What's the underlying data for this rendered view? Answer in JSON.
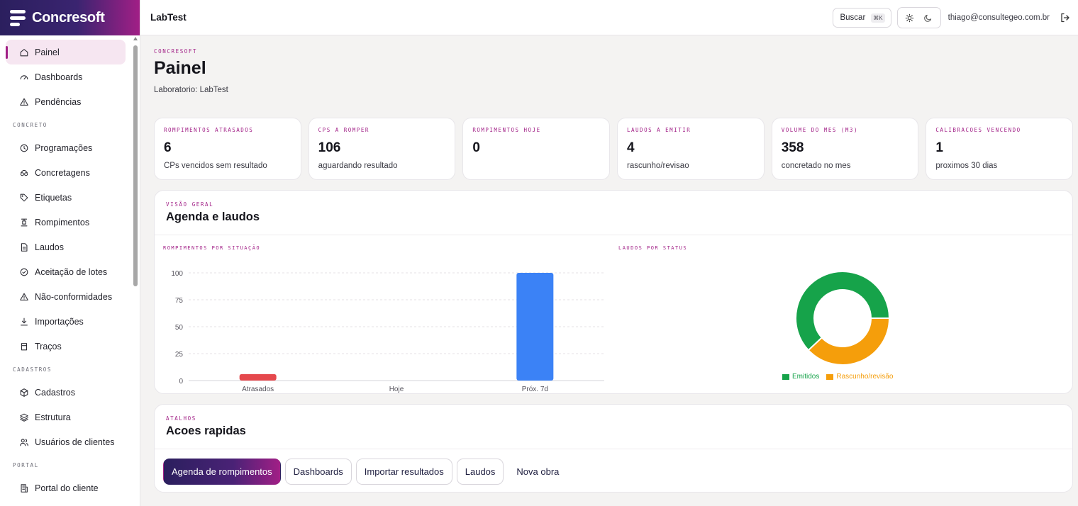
{
  "brand": {
    "name": "Concresoft"
  },
  "sidebar": {
    "items": [
      {
        "label": "Painel",
        "icon": "home-icon",
        "active": true
      },
      {
        "label": "Dashboards",
        "icon": "gauge-icon"
      },
      {
        "label": "Pendências",
        "icon": "warning-icon"
      },
      {
        "section": "CONCRETO"
      },
      {
        "label": "Programações",
        "icon": "clock-icon"
      },
      {
        "label": "Concretagens",
        "icon": "truck-icon"
      },
      {
        "label": "Etiquetas",
        "icon": "tag-icon"
      },
      {
        "label": "Rompimentos",
        "icon": "press-icon"
      },
      {
        "label": "Laudos",
        "icon": "document-icon"
      },
      {
        "label": "Aceitação de lotes",
        "icon": "check-circle-icon"
      },
      {
        "label": "Não-conformidades",
        "icon": "warning-icon"
      },
      {
        "label": "Importações",
        "icon": "download-icon"
      },
      {
        "label": "Traços",
        "icon": "cylinder-icon"
      },
      {
        "section": "CADASTROS"
      },
      {
        "label": "Cadastros",
        "icon": "box-icon"
      },
      {
        "label": "Estrutura",
        "icon": "layers-icon"
      },
      {
        "label": "Usuários de clientes",
        "icon": "users-icon"
      },
      {
        "section": "PORTAL"
      },
      {
        "label": "Portal do cliente",
        "icon": "building-icon"
      }
    ]
  },
  "topbar": {
    "title": "LabTest",
    "search_label": "Buscar",
    "search_shortcut": "⌘K",
    "user_email": "thiago@consultegeo.com.br"
  },
  "page": {
    "eyebrow": "CONCRESOFT",
    "title": "Painel",
    "subtitle": "Laboratorio: LabTest"
  },
  "stats": [
    {
      "label": "ROMPIMENTOS ATRASADOS",
      "value": "6",
      "note": "CPs vencidos sem resultado"
    },
    {
      "label": "CPS A ROMPER",
      "value": "106",
      "note": "aguardando resultado"
    },
    {
      "label": "ROMPIMENTOS HOJE",
      "value": "0",
      "note": ""
    },
    {
      "label": "LAUDOS A EMITIR",
      "value": "4",
      "note": "rascunho/revisao"
    },
    {
      "label": "VOLUME DO MES (M3)",
      "value": "358",
      "note": "concretado no mes"
    },
    {
      "label": "CALIBRACOES VENCENDO",
      "value": "1",
      "note": "proximos 30 dias"
    }
  ],
  "overview": {
    "eyebrow": "VISÃO GERAL",
    "title": "Agenda e laudos",
    "bar_label": "ROMPIMENTOS POR SITUAÇÃO",
    "donut_label": "LAUDOS POR STATUS"
  },
  "chart_data": [
    {
      "type": "bar",
      "title": "ROMPIMENTOS POR SITUAÇÃO",
      "categories": [
        "Atrasados",
        "Hoje",
        "Próx. 7d"
      ],
      "values": [
        6,
        0,
        100
      ],
      "colors": [
        "#e5484d",
        "#e5484d",
        "#3b82f6"
      ],
      "ylim": [
        0,
        100
      ],
      "yticks": [
        0,
        25,
        50,
        75,
        100
      ],
      "grid": true
    },
    {
      "type": "pie",
      "title": "LAUDOS POR STATUS",
      "categories": [
        "Emitidos",
        "Rascunho/revisão"
      ],
      "values": [
        62,
        38
      ],
      "colors": [
        "#16a34a",
        "#f59e0b"
      ],
      "legend": "bottom"
    }
  ],
  "shortcuts": {
    "eyebrow": "ATALHOS",
    "title": "Acoes rapidas",
    "buttons": [
      "Agenda de rompimentos",
      "Dashboards",
      "Importar resultados",
      "Laudos",
      "Nova obra"
    ]
  }
}
